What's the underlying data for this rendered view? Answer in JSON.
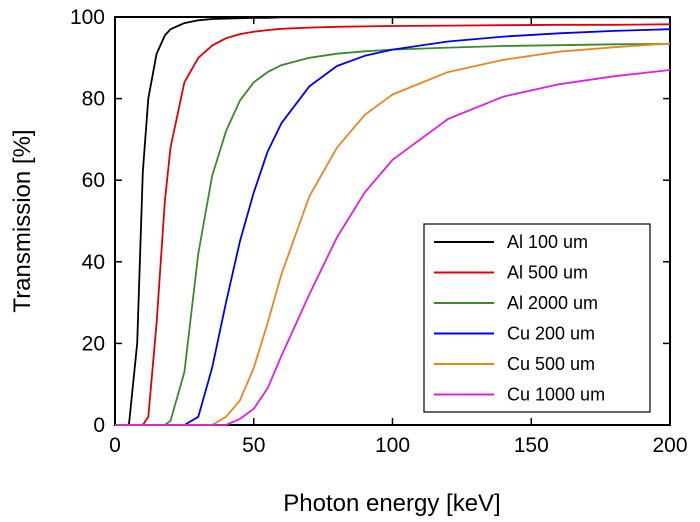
{
  "chart_data": {
    "type": "line",
    "title": "",
    "xlabel": "Photon energy [keV]",
    "ylabel": "Transmission [%]",
    "xlim": [
      0,
      200
    ],
    "ylim": [
      0,
      100
    ],
    "x_ticks": [
      "0",
      "50",
      "100",
      "150",
      "200"
    ],
    "y_ticks": [
      "0",
      "20",
      "40",
      "60",
      "80",
      "100"
    ],
    "grid": false,
    "legend_position": "bottom-right",
    "x": [
      0,
      5,
      8,
      10,
      12,
      15,
      18,
      20,
      25,
      30,
      35,
      40,
      45,
      50,
      55,
      60,
      70,
      80,
      90,
      100,
      120,
      140,
      160,
      180,
      200
    ],
    "series": [
      {
        "name": "Al 100 um",
        "color": "#000000",
        "values": [
          0,
          0,
          20,
          62,
          80,
          91,
          95.5,
          97,
          98.5,
          99.2,
          99.5,
          99.6,
          99.7,
          99.8,
          99.8,
          99.9,
          99.9,
          99.9,
          99.9,
          99.9,
          99.9,
          99.9,
          99.9,
          99.9,
          99.9
        ]
      },
      {
        "name": "Al 500 um",
        "color": "#e00000",
        "values": [
          0,
          0,
          0,
          0,
          2,
          25,
          55,
          68,
          84,
          90,
          93,
          94.8,
          95.8,
          96.4,
          96.8,
          97.1,
          97.4,
          97.6,
          97.7,
          97.8,
          97.9,
          98,
          98.1,
          98.1,
          98.2
        ]
      },
      {
        "name": "Al 2000 um",
        "color": "#3a8a2a",
        "values": [
          0,
          0,
          0,
          0,
          0,
          0,
          0,
          1,
          13,
          42,
          61,
          72,
          79.5,
          84,
          86.5,
          88.2,
          90,
          91,
          91.6,
          92,
          92.5,
          92.9,
          93.1,
          93.3,
          93.4
        ]
      },
      {
        "name": "Cu 200 um",
        "color": "#0000ee",
        "values": [
          0,
          0,
          0,
          0,
          0,
          0,
          0,
          0,
          0,
          2,
          14,
          30,
          45,
          57,
          67,
          74,
          83,
          88,
          90.5,
          92,
          94,
          95.2,
          96,
          96.6,
          97
        ]
      },
      {
        "name": "Cu 500 um",
        "color": "#e8871e",
        "values": [
          0,
          0,
          0,
          0,
          0,
          0,
          0,
          0,
          0,
          0,
          0,
          2,
          6,
          14,
          25,
          37,
          56,
          68,
          76,
          81,
          86.5,
          89.5,
          91.5,
          92.6,
          93.5
        ]
      },
      {
        "name": "Cu 1000 um",
        "color": "#e020e0",
        "values": [
          0,
          0,
          0,
          0,
          0,
          0,
          0,
          0,
          0,
          0,
          0,
          0,
          1.5,
          4,
          9,
          17,
          32,
          46,
          57,
          65,
          75,
          80.5,
          83.5,
          85.5,
          87
        ]
      }
    ]
  }
}
